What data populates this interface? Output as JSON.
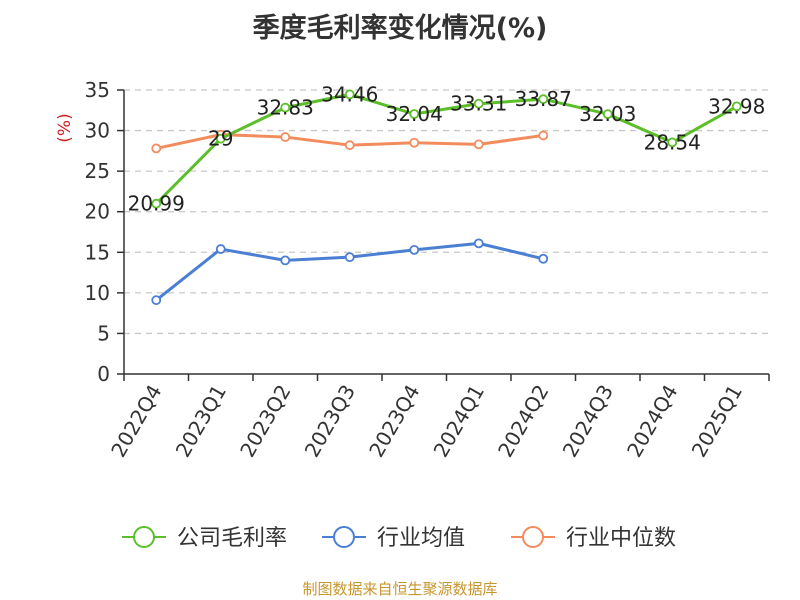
{
  "title": "季度毛利率变化情况(%)",
  "source": "制图数据来自恒生聚源数据库",
  "chart_data": {
    "type": "line",
    "title": "季度毛利率变化情况(%)",
    "ylabel": "(%)",
    "ylim": [
      0,
      35
    ],
    "yticks": [
      0,
      5,
      10,
      15,
      20,
      25,
      30,
      35
    ],
    "grid": true,
    "legend_position": "bottom",
    "categories": [
      "2022Q4",
      "2023Q1",
      "2023Q2",
      "2023Q3",
      "2023Q4",
      "2024Q1",
      "2024Q2",
      "2024Q3",
      "2024Q4",
      "2025Q1"
    ],
    "series": [
      {
        "name": "公司毛利率",
        "color": "#5cbf2a",
        "show_labels": true,
        "values": [
          20.99,
          29,
          32.83,
          34.46,
          32.04,
          33.31,
          33.87,
          32.03,
          28.54,
          32.98
        ]
      },
      {
        "name": "行业均值",
        "color": "#4a7fd4",
        "show_labels": false,
        "values": [
          9.1,
          15.4,
          14.0,
          14.4,
          15.3,
          16.1,
          14.2,
          null,
          null,
          null
        ]
      },
      {
        "name": "行业中位数",
        "color": "#f28c5c",
        "show_labels": false,
        "values": [
          27.8,
          29.5,
          29.2,
          28.2,
          28.5,
          28.3,
          29.4,
          null,
          null,
          null
        ]
      }
    ]
  }
}
